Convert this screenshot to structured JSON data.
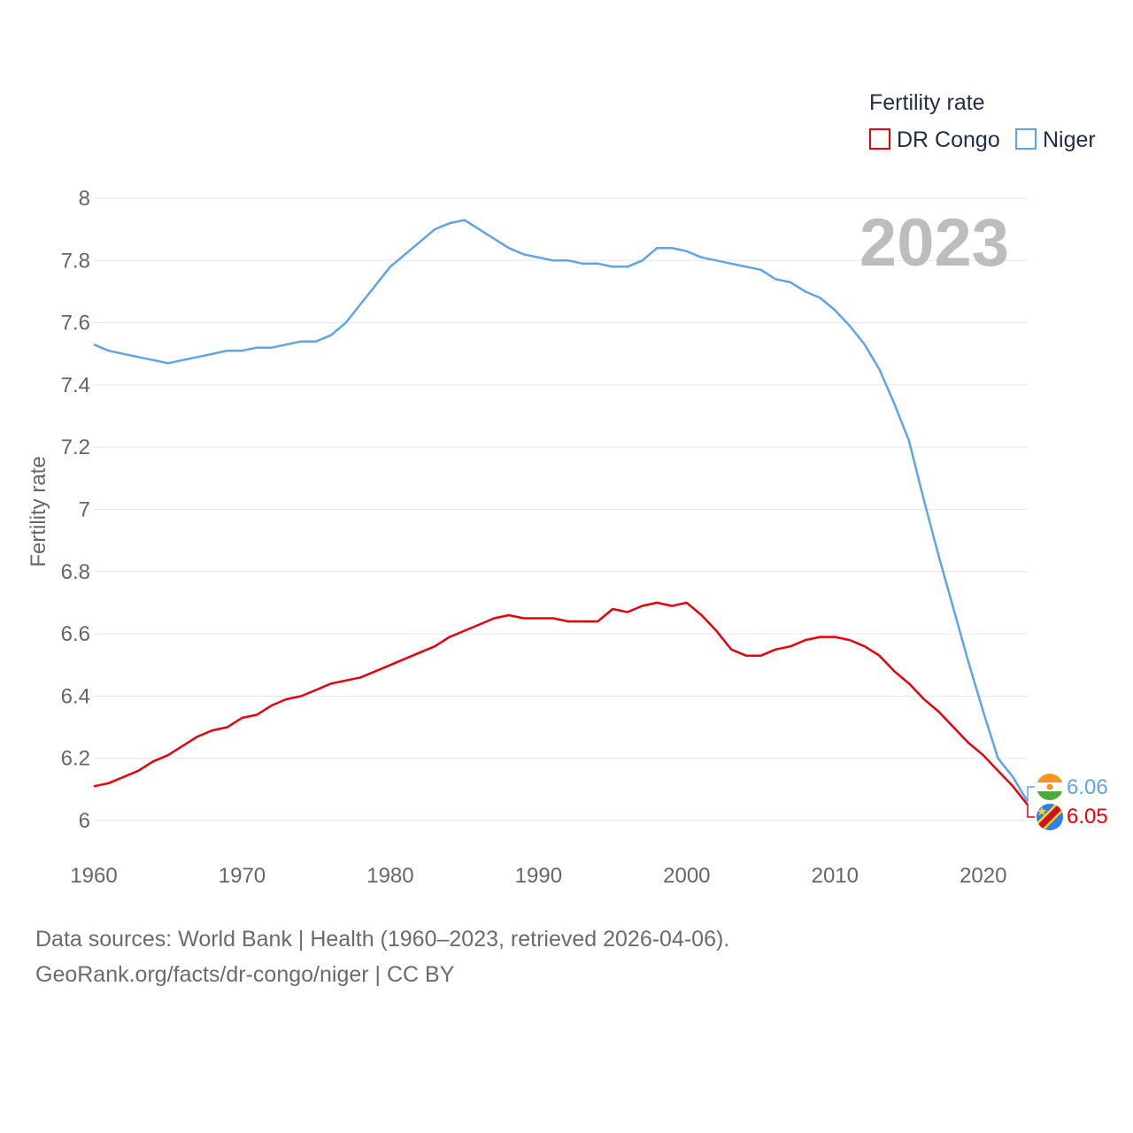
{
  "chart_data": {
    "type": "line",
    "title": "",
    "xlabel": "",
    "ylabel": "Fertility rate",
    "xlim": [
      1960,
      2023
    ],
    "ylim": [
      6,
      8
    ],
    "x_ticks": [
      1960,
      1970,
      1980,
      1990,
      2000,
      2010,
      2020
    ],
    "y_ticks": [
      "6",
      "6.2",
      "6.4",
      "6.6",
      "6.8",
      "7",
      "7.2",
      "7.4",
      "7.6",
      "7.8",
      "8"
    ],
    "year_label": "2023",
    "legend": {
      "title": "Fertility rate",
      "placement": "top-right",
      "entries": [
        "DR Congo",
        "Niger"
      ]
    },
    "x": [
      1960,
      1961,
      1962,
      1963,
      1964,
      1965,
      1966,
      1967,
      1968,
      1969,
      1970,
      1971,
      1972,
      1973,
      1974,
      1975,
      1976,
      1977,
      1978,
      1979,
      1980,
      1981,
      1982,
      1983,
      1984,
      1985,
      1986,
      1987,
      1988,
      1989,
      1990,
      1991,
      1992,
      1993,
      1994,
      1995,
      1996,
      1997,
      1998,
      1999,
      2000,
      2001,
      2002,
      2003,
      2004,
      2005,
      2006,
      2007,
      2008,
      2009,
      2010,
      2011,
      2012,
      2013,
      2014,
      2015,
      2016,
      2017,
      2018,
      2019,
      2020,
      2021,
      2022,
      2023
    ],
    "series": [
      {
        "name": "DR Congo",
        "color": "#e8000b",
        "end_label": "6.05",
        "values": [
          6.11,
          6.12,
          6.14,
          6.16,
          6.19,
          6.21,
          6.24,
          6.27,
          6.29,
          6.3,
          6.33,
          6.34,
          6.37,
          6.39,
          6.4,
          6.42,
          6.44,
          6.45,
          6.46,
          6.48,
          6.5,
          6.52,
          6.54,
          6.56,
          6.59,
          6.61,
          6.63,
          6.65,
          6.66,
          6.65,
          6.65,
          6.65,
          6.64,
          6.64,
          6.64,
          6.68,
          6.67,
          6.69,
          6.7,
          6.69,
          6.7,
          6.66,
          6.61,
          6.55,
          6.53,
          6.53,
          6.55,
          6.56,
          6.58,
          6.59,
          6.59,
          6.58,
          6.56,
          6.53,
          6.48,
          6.44,
          6.39,
          6.35,
          6.3,
          6.25,
          6.21,
          6.16,
          6.11,
          6.05
        ]
      },
      {
        "name": "Niger",
        "color": "#5da5e8",
        "end_label": "6.06",
        "values": [
          7.53,
          7.51,
          7.5,
          7.49,
          7.48,
          7.47,
          7.48,
          7.49,
          7.5,
          7.51,
          7.51,
          7.52,
          7.52,
          7.53,
          7.54,
          7.54,
          7.56,
          7.6,
          7.66,
          7.72,
          7.78,
          7.82,
          7.86,
          7.9,
          7.92,
          7.93,
          7.9,
          7.87,
          7.84,
          7.82,
          7.81,
          7.8,
          7.8,
          7.79,
          7.79,
          7.78,
          7.78,
          7.8,
          7.84,
          7.84,
          7.83,
          7.81,
          7.8,
          7.79,
          7.78,
          7.77,
          7.74,
          7.73,
          7.7,
          7.68,
          7.64,
          7.59,
          7.53,
          7.45,
          7.34,
          7.22,
          7.03,
          6.85,
          6.68,
          6.51,
          6.35,
          6.2,
          6.14,
          6.06
        ]
      }
    ]
  },
  "footer": {
    "line1": "Data sources: World Bank | Health (1960–2023, retrieved 2026-04-06).",
    "line2": "GeoRank.org/facts/dr-congo/niger | CC BY"
  }
}
